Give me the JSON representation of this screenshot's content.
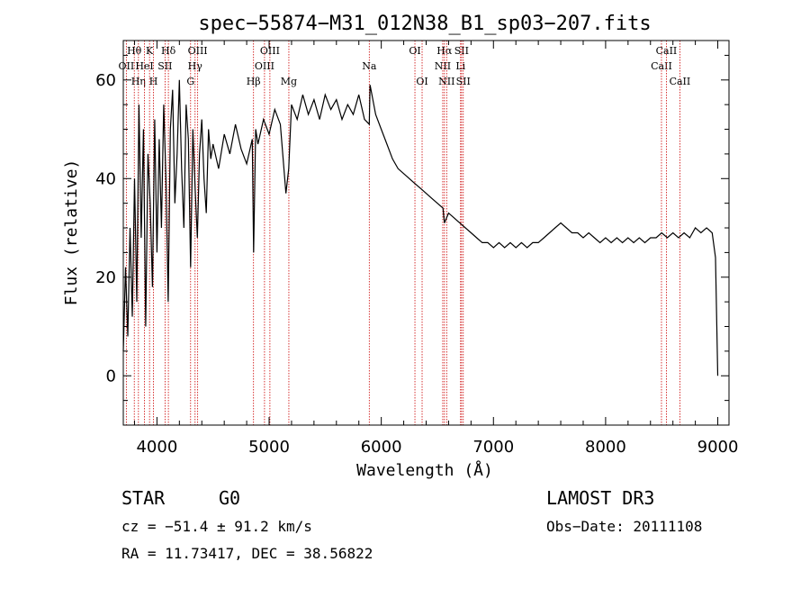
{
  "chart_data": {
    "type": "line",
    "title": "spec−55874−M31_012N38_B1_sp03−207.fits",
    "xlabel": "Wavelength (Å)",
    "ylabel": "Flux (relative)",
    "xlim": [
      3700,
      9100
    ],
    "ylim": [
      -10,
      68
    ],
    "xticks": [
      4000,
      5000,
      6000,
      7000,
      8000,
      9000
    ],
    "xtick_labels": [
      "4000",
      "5000",
      "6000",
      "7000",
      "8000",
      "9000"
    ],
    "yticks": [
      0,
      20,
      40,
      60
    ],
    "ytick_labels": [
      "0",
      "20",
      "40",
      "60"
    ],
    "grid": false,
    "series": [
      {
        "name": "flux",
        "x": [
          3700,
          3720,
          3740,
          3760,
          3780,
          3800,
          3820,
          3840,
          3860,
          3880,
          3900,
          3920,
          3940,
          3960,
          3980,
          4000,
          4020,
          4040,
          4060,
          4080,
          4100,
          4120,
          4140,
          4160,
          4180,
          4200,
          4220,
          4240,
          4260,
          4280,
          4300,
          4320,
          4340,
          4360,
          4380,
          4400,
          4420,
          4440,
          4460,
          4480,
          4500,
          4550,
          4600,
          4650,
          4700,
          4750,
          4800,
          4850,
          4862,
          4880,
          4900,
          4950,
          5000,
          5050,
          5100,
          5150,
          5175,
          5200,
          5250,
          5300,
          5350,
          5400,
          5450,
          5500,
          5550,
          5600,
          5650,
          5700,
          5750,
          5800,
          5850,
          5893,
          5900,
          5950,
          6000,
          6050,
          6100,
          6150,
          6200,
          6250,
          6300,
          6350,
          6400,
          6450,
          6500,
          6550,
          6563,
          6600,
          6650,
          6700,
          6750,
          6800,
          6850,
          6900,
          6950,
          7000,
          7050,
          7100,
          7150,
          7200,
          7250,
          7300,
          7350,
          7400,
          7450,
          7500,
          7550,
          7600,
          7650,
          7700,
          7750,
          7800,
          7850,
          7900,
          7950,
          8000,
          8050,
          8100,
          8150,
          8200,
          8250,
          8300,
          8350,
          8400,
          8450,
          8500,
          8550,
          8600,
          8650,
          8700,
          8750,
          8800,
          8850,
          8900,
          8950,
          8980,
          9000
        ],
        "values": [
          5,
          22,
          8,
          30,
          12,
          40,
          15,
          55,
          28,
          50,
          10,
          45,
          35,
          18,
          52,
          25,
          48,
          30,
          55,
          40,
          15,
          50,
          58,
          35,
          45,
          60,
          42,
          30,
          55,
          48,
          22,
          50,
          38,
          28,
          45,
          52,
          40,
          33,
          50,
          44,
          47,
          42,
          49,
          45,
          51,
          46,
          43,
          48,
          25,
          50,
          47,
          52,
          49,
          54,
          51,
          37,
          42,
          55,
          52,
          57,
          53,
          56,
          52,
          57,
          54,
          56,
          52,
          55,
          53,
          57,
          52,
          51,
          59,
          53,
          50,
          47,
          44,
          42,
          41,
          40,
          39,
          38,
          37,
          36,
          35,
          34,
          31,
          33,
          32,
          31,
          30,
          29,
          28,
          27,
          27,
          26,
          27,
          26,
          27,
          26,
          27,
          26,
          27,
          27,
          28,
          29,
          30,
          31,
          30,
          29,
          29,
          28,
          29,
          28,
          27,
          28,
          27,
          28,
          27,
          28,
          27,
          28,
          27,
          28,
          28,
          29,
          28,
          29,
          28,
          29,
          28,
          30,
          29,
          30,
          29,
          24,
          0
        ]
      }
    ],
    "line_markers": [
      {
        "x": 3727,
        "labels": [
          "OII"
        ],
        "row": 2
      },
      {
        "x": 3798,
        "labels": [
          "Hθ"
        ],
        "row": 1
      },
      {
        "x": 3835,
        "labels": [
          "Hη"
        ],
        "row": 3
      },
      {
        "x": 3889,
        "labels": [
          "HeI"
        ],
        "row": 2
      },
      {
        "x": 3934,
        "labels": [
          "K"
        ],
        "row": 1
      },
      {
        "x": 3969,
        "labels": [
          "H"
        ],
        "row": 3
      },
      {
        "x": 4072,
        "labels": [
          "SII"
        ],
        "row": 2
      },
      {
        "x": 4102,
        "labels": [
          "Hδ"
        ],
        "row": 1
      },
      {
        "x": 4300,
        "labels": [
          "G"
        ],
        "row": 3
      },
      {
        "x": 4340,
        "labels": [
          "Hγ"
        ],
        "row": 2
      },
      {
        "x": 4363,
        "labels": [
          "OIII"
        ],
        "row": 1
      },
      {
        "x": 4861,
        "labels": [
          "Hβ"
        ],
        "row": 3
      },
      {
        "x": 4959,
        "labels": [
          "OIII"
        ],
        "row": 2
      },
      {
        "x": 5007,
        "labels": [
          "OIII"
        ],
        "row": 1
      },
      {
        "x": 5176,
        "labels": [
          "Mg"
        ],
        "row": 3
      },
      {
        "x": 5893,
        "labels": [
          "Na"
        ],
        "row": 2
      },
      {
        "x": 6300,
        "labels": [
          "OI"
        ],
        "row": 1
      },
      {
        "x": 6364,
        "labels": [
          "OI"
        ],
        "row": 3
      },
      {
        "x": 6548,
        "labels": [
          "NII"
        ],
        "row": 2
      },
      {
        "x": 6563,
        "labels": [
          "Hα"
        ],
        "row": 1
      },
      {
        "x": 6583,
        "labels": [
          "NII"
        ],
        "row": 3
      },
      {
        "x": 6707,
        "labels": [
          "Li"
        ],
        "row": 2
      },
      {
        "x": 6716,
        "labels": [
          "SII"
        ],
        "row": 1
      },
      {
        "x": 6731,
        "labels": [
          "SII"
        ],
        "row": 3
      },
      {
        "x": 8498,
        "labels": [
          "CaII"
        ],
        "row": 2
      },
      {
        "x": 8542,
        "labels": [
          "CaII"
        ],
        "row": 1
      },
      {
        "x": 8662,
        "labels": [
          "CaII"
        ],
        "row": 3
      }
    ]
  },
  "info": {
    "object_class": "STAR",
    "subclass": "G0",
    "survey": "LAMOST DR3",
    "redshift_text": "cz = −51.4 ± 91.2 km/s",
    "obs_date_text": "Obs−Date: 20111108",
    "coords_text": "RA =  11.73417, DEC =  38.56822"
  },
  "colors": {
    "spectrum": "#000000",
    "line_marker": "#cc0000",
    "axes": "#000000",
    "background": "#ffffff"
  }
}
